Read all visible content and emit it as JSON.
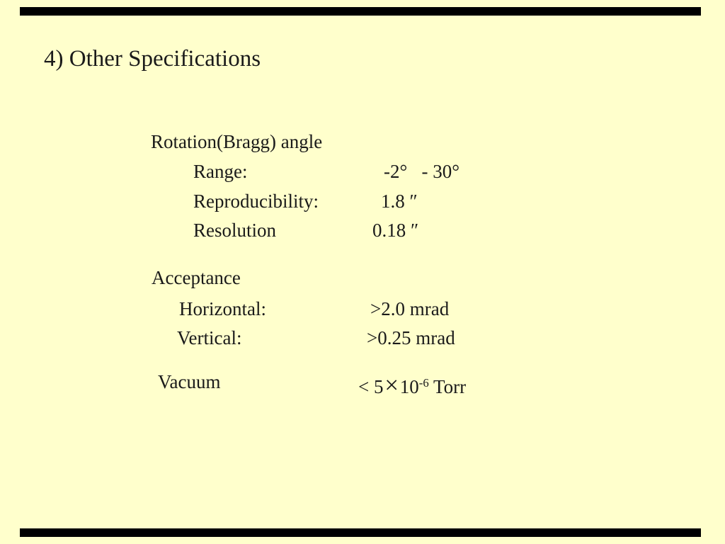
{
  "slide": {
    "title": "4) Other Specifications",
    "colors": {
      "background": "#FFFFCC",
      "accent_bar": "#000000",
      "text": "#1A1A1A"
    },
    "sections": [
      {
        "heading": "Rotation(Bragg) angle",
        "rows": [
          {
            "label": "Range:",
            "value": "-2°   - 30°"
          },
          {
            "label": "Reproducibility:",
            "value": "1.8 ″"
          },
          {
            "label": "Resolution",
            "value": "0.18 ″"
          }
        ]
      },
      {
        "heading": "Acceptance",
        "rows": [
          {
            "label": "Horizontal:",
            "value": ">2.0 mrad"
          },
          {
            "label": "Vertical:",
            "value": ">0.25 mrad"
          }
        ]
      },
      {
        "heading": "Vacuum",
        "value": {
          "prefix": "< 5",
          "times": "×",
          "base": "10",
          "exponent": "-6",
          "unit": " Torr"
        }
      }
    ]
  }
}
